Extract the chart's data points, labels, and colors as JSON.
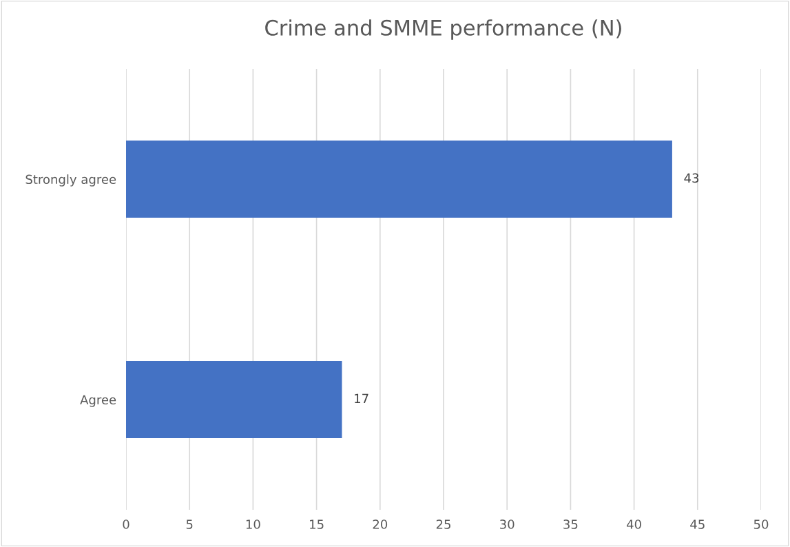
{
  "chart_data": {
    "type": "bar",
    "orientation": "horizontal",
    "title": "Crime and SMME performance (N)",
    "categories": [
      "Strongly agree",
      "Agree"
    ],
    "values": [
      43,
      17
    ],
    "color": "#4472c4",
    "xlim": [
      0,
      50
    ],
    "xticks": [
      0,
      5,
      10,
      15,
      20,
      25,
      30,
      35,
      40,
      45,
      50
    ],
    "grid": "x",
    "data_labels": true
  }
}
